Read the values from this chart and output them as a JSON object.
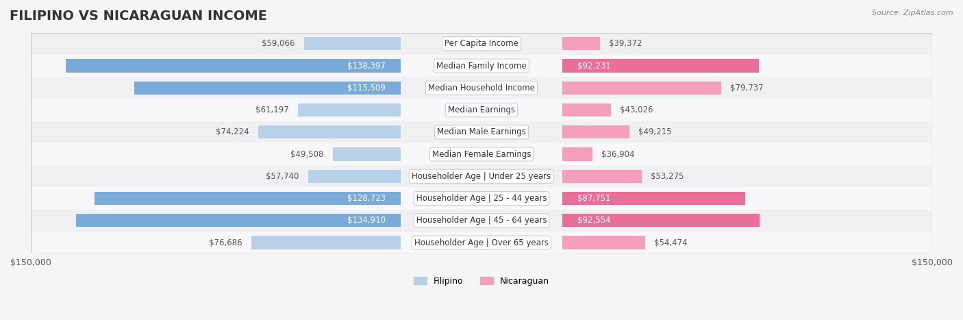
{
  "title": "FILIPINO VS NICARAGUAN INCOME",
  "source": "Source: ZipAtlas.com",
  "categories": [
    "Per Capita Income",
    "Median Family Income",
    "Median Household Income",
    "Median Earnings",
    "Median Male Earnings",
    "Median Female Earnings",
    "Householder Age | Under 25 years",
    "Householder Age | 25 - 44 years",
    "Householder Age | 45 - 64 years",
    "Householder Age | Over 65 years"
  ],
  "filipino_values": [
    59066,
    138397,
    115509,
    61197,
    74224,
    49508,
    57740,
    128723,
    134910,
    76686
  ],
  "nicaraguan_values": [
    39372,
    92231,
    79737,
    43026,
    49215,
    36904,
    53275,
    87751,
    92554,
    54474
  ],
  "filipino_color": "#a8c0e0",
  "nicaraguan_color": "#f08aaa",
  "filipino_color_dark": "#6d9fd4",
  "nicaraguan_color_dark": "#e8608a",
  "max_value": 150000,
  "bg_color": "#f5f5f5",
  "row_bg_light": "#f9f9f9",
  "row_bg_dark": "#f0f0f0",
  "title_fontsize": 14,
  "label_fontsize": 9,
  "value_fontsize": 8.5
}
